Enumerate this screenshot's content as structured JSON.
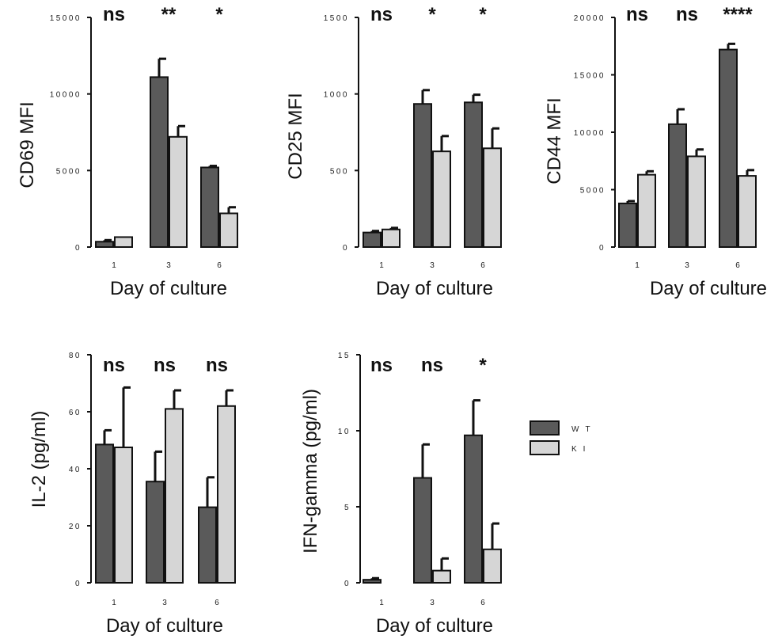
{
  "chart_data": [
    {
      "type": "bar",
      "categories": [
        "1",
        "3",
        "6"
      ],
      "ylabel": "CD69 MFI",
      "xlabel": "Day of culture",
      "ylim": [
        0,
        15000
      ],
      "yticks": [
        0,
        5000,
        10000,
        15000
      ],
      "ytick_labels": [
        "0",
        "5000",
        "10000",
        "15000"
      ],
      "series": [
        {
          "name": "WT",
          "values": [
            350,
            11100,
            5200
          ],
          "errors": [
            100,
            1200,
            100
          ]
        },
        {
          "name": "KI",
          "values": [
            650,
            7200,
            2200
          ],
          "errors": [
            0,
            700,
            400
          ]
        }
      ],
      "significance": [
        "ns",
        "**",
        "*"
      ]
    },
    {
      "type": "bar",
      "categories": [
        "1",
        "3",
        "6"
      ],
      "ylabel": "CD25 MFI",
      "xlabel": "Day of culture",
      "ylim": [
        0,
        1500
      ],
      "yticks": [
        0,
        500,
        1000,
        1500
      ],
      "ytick_labels": [
        "0",
        "500",
        "1000",
        "1500"
      ],
      "series": [
        {
          "name": "WT",
          "values": [
            95,
            935,
            945
          ],
          "errors": [
            10,
            90,
            50
          ]
        },
        {
          "name": "KI",
          "values": [
            115,
            625,
            645
          ],
          "errors": [
            10,
            100,
            130
          ]
        }
      ],
      "significance": [
        "ns",
        "*",
        "*"
      ]
    },
    {
      "type": "bar",
      "categories": [
        "1",
        "3",
        "6"
      ],
      "ylabel": "CD44 MFI",
      "xlabel": "Day of culture",
      "ylim": [
        0,
        20000
      ],
      "yticks": [
        0,
        5000,
        10000,
        15000,
        20000
      ],
      "ytick_labels": [
        "0",
        "5000",
        "10000",
        "15000",
        "20000"
      ],
      "series": [
        {
          "name": "WT",
          "values": [
            3800,
            10700,
            17200
          ],
          "errors": [
            200,
            1300,
            500
          ]
        },
        {
          "name": "KI",
          "values": [
            6300,
            7900,
            6200
          ],
          "errors": [
            300,
            600,
            500
          ]
        }
      ],
      "significance": [
        "ns",
        "ns",
        "****"
      ]
    },
    {
      "type": "bar",
      "categories": [
        "1",
        "3",
        "6"
      ],
      "ylabel": "IL-2 (pg/ml)",
      "xlabel": "Day of culture",
      "ylim": [
        0,
        80
      ],
      "yticks": [
        0,
        20,
        40,
        60,
        80
      ],
      "ytick_labels": [
        "0",
        "20",
        "40",
        "60",
        "80"
      ],
      "series": [
        {
          "name": "WT",
          "values": [
            48.5,
            35.5,
            26.5
          ],
          "errors": [
            5.0,
            10.5,
            10.5
          ]
        },
        {
          "name": "KI",
          "values": [
            47.5,
            61,
            62
          ],
          "errors": [
            21,
            6.5,
            5.5
          ]
        }
      ],
      "significance": [
        "ns",
        "ns",
        "ns"
      ]
    },
    {
      "type": "bar",
      "categories": [
        "1",
        "3",
        "6"
      ],
      "ylabel": "IFN-gamma (pg/ml)",
      "xlabel": "Day of culture",
      "ylim": [
        0,
        15
      ],
      "yticks": [
        0,
        5,
        10,
        15
      ],
      "ytick_labels": [
        "0",
        "5",
        "10",
        "15"
      ],
      "series": [
        {
          "name": "WT",
          "values": [
            0.2,
            6.9,
            9.7
          ],
          "errors": [
            0.1,
            2.2,
            2.3
          ]
        },
        {
          "name": "KI",
          "values": [
            0,
            0.8,
            2.2
          ],
          "errors": [
            0,
            0.8,
            1.7
          ]
        }
      ],
      "significance": [
        "ns",
        "ns",
        "*"
      ]
    }
  ],
  "legend": [
    {
      "label": "WT",
      "color": "#5a5a5a"
    },
    {
      "label": "KI",
      "color": "#d6d6d6"
    }
  ],
  "colors": {
    "wt": "#5a5a5a",
    "ki": "#d6d6d6",
    "axis": "#111111"
  }
}
